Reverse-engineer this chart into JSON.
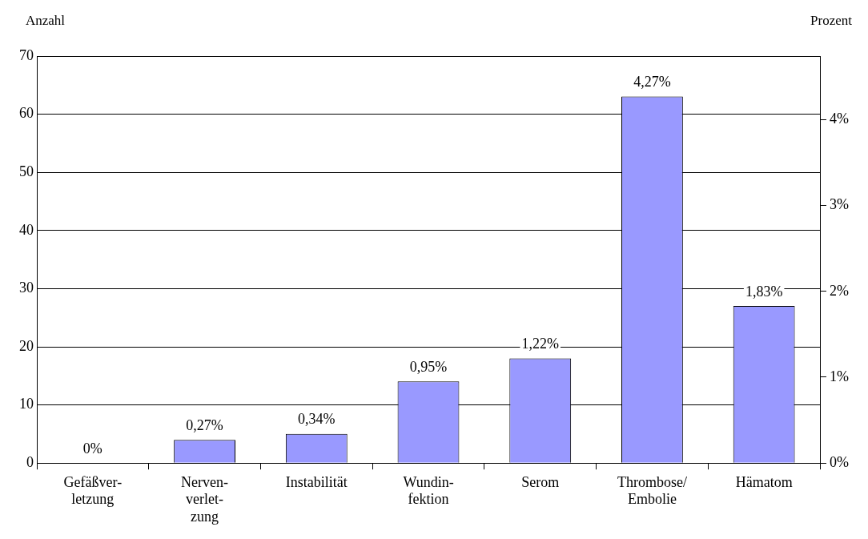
{
  "chart_data": {
    "type": "bar",
    "ylabel": "Anzahl",
    "y2label": "Prozent",
    "categories": [
      "Gefäßver-\nletzung",
      "Nerven-\nverlet-\nzung",
      "Instabilität",
      "Wundin-\nfektion",
      "Serom",
      "Thrombose/\nEmbolie",
      "Hämatom"
    ],
    "series": [
      {
        "axis": "y2",
        "color": "#9999ff",
        "values": [
          0,
          0.27,
          0.34,
          0.95,
          1.22,
          4.27,
          1.83
        ],
        "value_labels": [
          "0%",
          "0,27%",
          "0,34%",
          "0,95%",
          "1,22%",
          "4,27%",
          "1,83%"
        ]
      }
    ],
    "ylim": [
      0,
      70
    ],
    "yticks": [
      0,
      10,
      20,
      30,
      40,
      50,
      60,
      70
    ],
    "y2lim": [
      0,
      4.74
    ],
    "y2ticks": [
      {
        "value": 0,
        "label": "0%"
      },
      {
        "value": 1,
        "label": "1%"
      },
      {
        "value": 2,
        "label": "2%"
      },
      {
        "value": 3,
        "label": "3%"
      },
      {
        "value": 4,
        "label": "4%"
      }
    ],
    "grid": "y"
  }
}
